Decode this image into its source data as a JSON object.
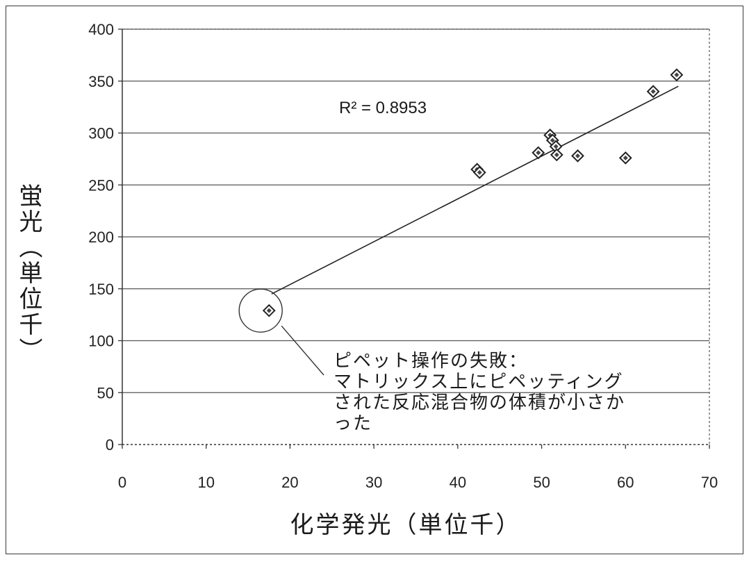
{
  "chart_data": {
    "type": "scatter",
    "xlabel": "化学発光（単位千）",
    "ylabel": "蛍光（単位千）",
    "xlim": [
      0,
      70
    ],
    "ylim": [
      0,
      400
    ],
    "x_ticks": [
      0,
      10,
      20,
      30,
      40,
      50,
      60,
      70
    ],
    "y_ticks": [
      0,
      50,
      100,
      150,
      200,
      250,
      300,
      350,
      400
    ],
    "grid": "horizontal",
    "points": [
      {
        "x": 17.5,
        "y": 129
      },
      {
        "x": 42.3,
        "y": 265
      },
      {
        "x": 42.6,
        "y": 262
      },
      {
        "x": 49.6,
        "y": 281
      },
      {
        "x": 51.0,
        "y": 298
      },
      {
        "x": 51.3,
        "y": 293
      },
      {
        "x": 51.7,
        "y": 287
      },
      {
        "x": 51.8,
        "y": 279
      },
      {
        "x": 54.3,
        "y": 278
      },
      {
        "x": 60.0,
        "y": 276
      },
      {
        "x": 63.3,
        "y": 340
      },
      {
        "x": 66.1,
        "y": 356
      }
    ],
    "trendline": {
      "x": [
        17.8,
        66.3
      ],
      "y": [
        145,
        345
      ]
    },
    "r_squared_label": "R² = 0.8953",
    "outlier": {
      "x": 16.5,
      "y": 129
    },
    "annotation": [
      "ピペット操作の失敗：",
      "マトリックス上にピペッティング",
      "された反応混合物の体積が小さか",
      "った"
    ]
  }
}
